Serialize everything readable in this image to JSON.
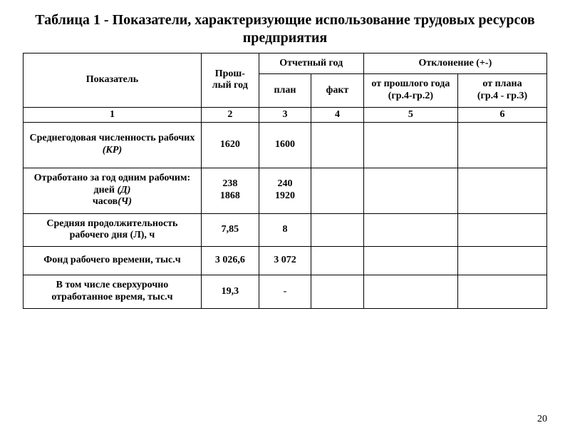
{
  "title": "Таблица 1 - Показатели, характеризующие использование трудовых ресурсов предприятия",
  "headers": {
    "indicator": "Показатель",
    "prev_year": "Прош-\nлый год",
    "report_year": "Отчетный год",
    "deviation": "Отклонение  (+-)",
    "plan": "план",
    "fact": "факт",
    "from_prev": "от прошлого года",
    "from_prev_sub": "(гр.4-гр.2)",
    "from_plan": "от плана",
    "from_plan_sub": "(гр.4 - гр.3)"
  },
  "colnums": [
    "1",
    "2",
    "3",
    "4",
    "5",
    "6"
  ],
  "rows": [
    {
      "label_html": "Среднегодовая численность рабочих <span class='it'>(КР)</span>",
      "prev": "1620",
      "plan": "1600",
      "fact": "",
      "dev_prev": "",
      "dev_plan": "",
      "cls": "tall"
    },
    {
      "label_html": "Отработано за год одним рабочим:<br>дней <span class='it'>(Д)</span><br>часов<span class='it'>(Ч)</span>",
      "prev": "238\n1868",
      "plan": "240\n1920",
      "fact": "",
      "dev_prev": "",
      "dev_plan": "",
      "cls": "tall"
    },
    {
      "label_html": "Средняя продолжительность рабочего дня (Л), ч",
      "prev": "7,85",
      "plan": "8",
      "fact": "",
      "dev_prev": "",
      "dev_plan": "",
      "cls": "short"
    },
    {
      "label_html": "Фонд рабочего времени, тыс.ч",
      "prev": "3 026,6",
      "plan": "3 072",
      "fact": "",
      "dev_prev": "",
      "dev_plan": "",
      "cls": "short"
    },
    {
      "label_html": "В том числе сверхурочно отработанное время, тыс.ч",
      "prev": "19,3",
      "plan": "-",
      "fact": "",
      "dev_prev": "",
      "dev_plan": "",
      "cls": "short"
    }
  ],
  "page_number": "20",
  "style": {
    "background": "#ffffff",
    "text_color": "#000000",
    "border_color": "#000000",
    "title_fontsize": 20,
    "cell_fontsize": 14,
    "font_family": "Times New Roman"
  }
}
